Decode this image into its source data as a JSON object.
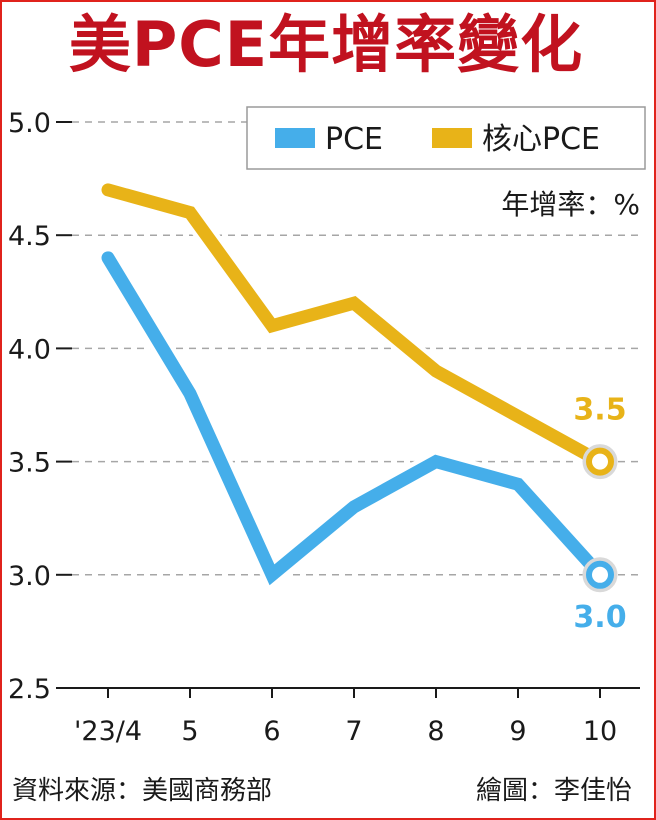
{
  "title": "美PCE年增率變化",
  "unit": "年增率：%",
  "footer": {
    "source": "資料來源：美國商務部",
    "credit": "繪圖：李佳怡"
  },
  "colors": {
    "pce": "#45aeea",
    "core_pce": "#e8b318",
    "title": "#c1121f",
    "frame": "#e0231c"
  },
  "chart_data": {
    "type": "line",
    "categories": [
      "'23/4",
      "5",
      "6",
      "7",
      "8",
      "9",
      "10"
    ],
    "series": [
      {
        "name": "PCE",
        "values": [
          4.4,
          3.8,
          3.0,
          3.3,
          3.5,
          3.4,
          3.0
        ],
        "end_label": "3.0"
      },
      {
        "name": "核心PCE",
        "values": [
          4.7,
          4.6,
          4.1,
          4.2,
          3.9,
          3.7,
          3.5
        ],
        "end_label": "3.5"
      }
    ],
    "yticks": [
      "2.5",
      "3.0",
      "3.5",
      "4.0",
      "4.5",
      "5.0"
    ],
    "ylim": [
      2.5,
      5.0
    ],
    "grid": true,
    "legend_position": "top-right"
  }
}
